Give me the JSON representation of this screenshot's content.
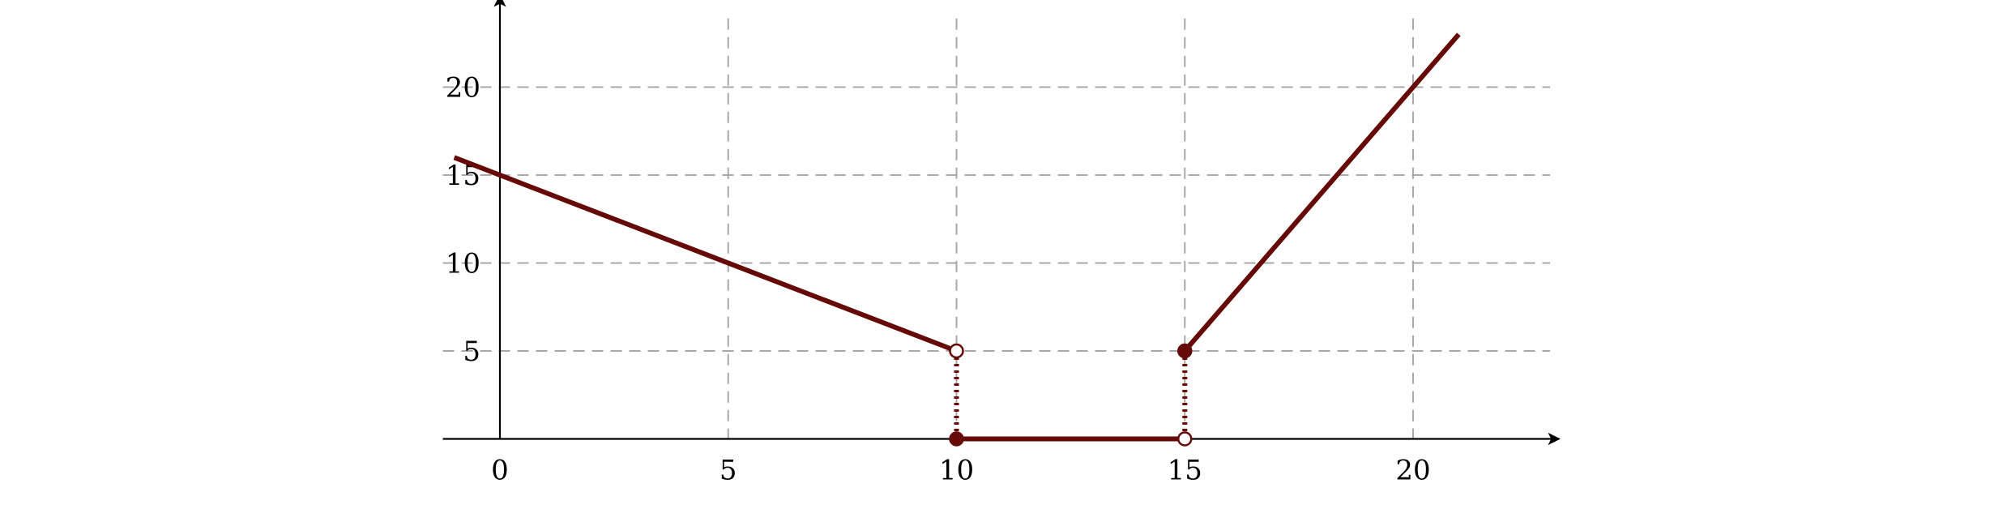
{
  "chart_data": {
    "type": "line",
    "title": "",
    "xlabel": "",
    "ylabel": "",
    "xlim": [
      -2,
      24
    ],
    "ylim": [
      0,
      24
    ],
    "grid": true,
    "x_ticks": [
      0,
      5,
      10,
      15,
      20
    ],
    "y_ticks": [
      5,
      10,
      15,
      20
    ],
    "x_tick_labels": [
      "0",
      "5",
      "10",
      "15",
      "20"
    ],
    "y_tick_labels": [
      "5",
      "10",
      "15",
      "20"
    ],
    "color": "#650a06",
    "segments": [
      {
        "points": [
          [
            -1,
            16
          ],
          [
            10,
            5
          ]
        ]
      },
      {
        "points": [
          [
            10,
            0
          ],
          [
            15,
            0
          ]
        ]
      },
      {
        "points": [
          [
            15,
            5
          ],
          [
            21,
            23
          ]
        ]
      }
    ],
    "dotted_connectors": [
      {
        "points": [
          [
            10,
            5
          ],
          [
            10,
            0
          ]
        ]
      },
      {
        "points": [
          [
            15,
            5
          ],
          [
            15,
            0
          ]
        ]
      }
    ],
    "markers": [
      {
        "x": 10,
        "y": 5,
        "filled": false
      },
      {
        "x": 10,
        "y": 0,
        "filled": true
      },
      {
        "x": 15,
        "y": 5,
        "filled": true
      },
      {
        "x": 15,
        "y": 0,
        "filled": false
      }
    ]
  }
}
